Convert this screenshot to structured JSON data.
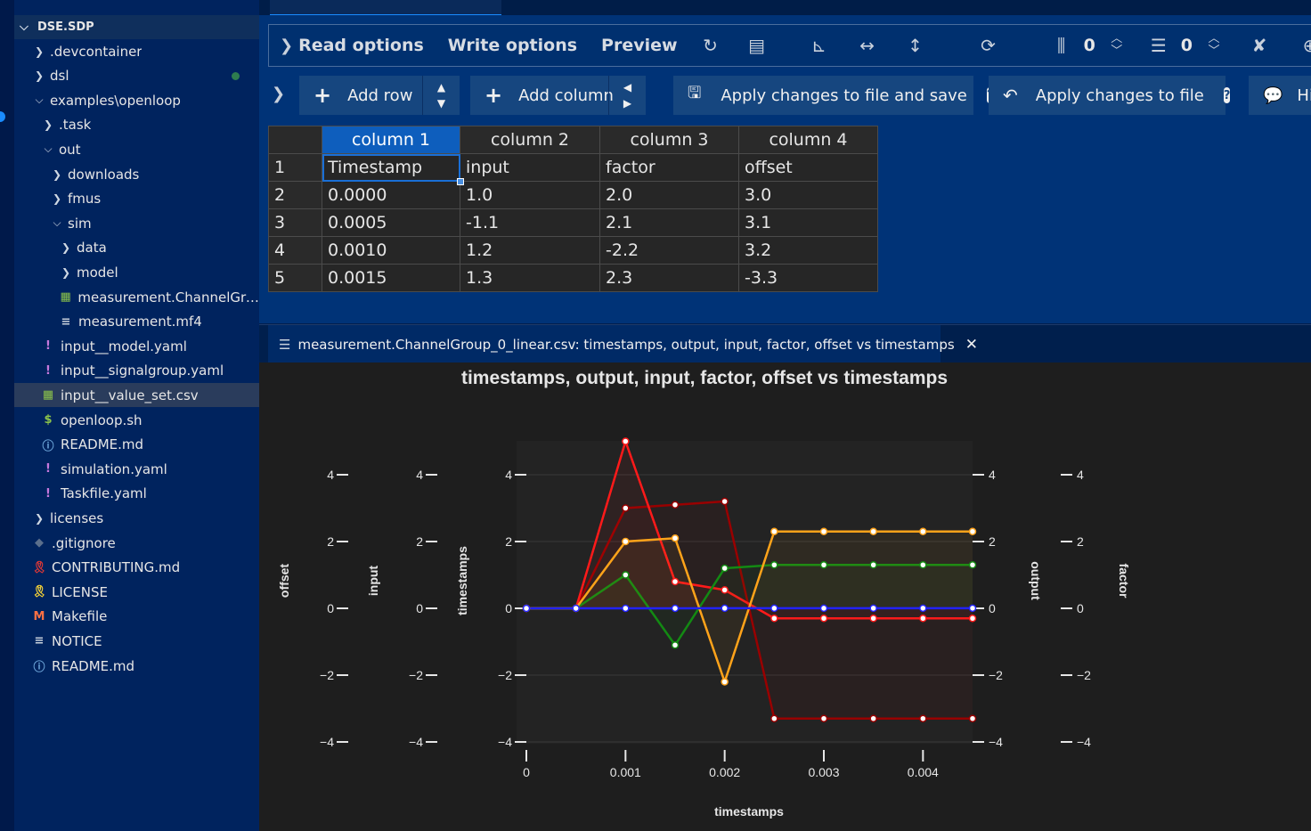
{
  "explorer": {
    "root": "DSE.SDP",
    "items": [
      {
        "label": ".devcontainer",
        "type": "folder",
        "open": false,
        "depth": 0
      },
      {
        "label": "dsl",
        "type": "folder",
        "open": false,
        "depth": 0
      },
      {
        "label": "examples\\openloop",
        "type": "folder",
        "open": true,
        "depth": 0
      },
      {
        "label": ".task",
        "type": "folder",
        "open": false,
        "depth": 1
      },
      {
        "label": "out",
        "type": "folder",
        "open": true,
        "depth": 1
      },
      {
        "label": "downloads",
        "type": "folder",
        "open": false,
        "depth": 2
      },
      {
        "label": "fmus",
        "type": "folder",
        "open": false,
        "depth": 2
      },
      {
        "label": "sim",
        "type": "folder",
        "open": true,
        "depth": 2
      },
      {
        "label": "data",
        "type": "folder",
        "open": false,
        "depth": 3
      },
      {
        "label": "model",
        "type": "folder",
        "open": false,
        "depth": 3
      },
      {
        "label": "measurement.ChannelGro...",
        "type": "csv",
        "depth": 3
      },
      {
        "label": "measurement.mf4",
        "type": "text",
        "depth": 3
      },
      {
        "label": "input__model.yaml",
        "type": "yaml",
        "depth": 1
      },
      {
        "label": "input__signalgroup.yaml",
        "type": "yaml",
        "depth": 1
      },
      {
        "label": "input__value_set.csv",
        "type": "csv",
        "depth": 1,
        "selected": true
      },
      {
        "label": "openloop.sh",
        "type": "shell",
        "depth": 1
      },
      {
        "label": "README.md",
        "type": "info",
        "depth": 1
      },
      {
        "label": "simulation.yaml",
        "type": "yaml",
        "depth": 1
      },
      {
        "label": "Taskfile.yaml",
        "type": "yaml",
        "depth": 1
      },
      {
        "label": "licenses",
        "type": "folder",
        "open": false,
        "depth": 0
      },
      {
        "label": ".gitignore",
        "type": "git",
        "depth": 0
      },
      {
        "label": "CONTRIBUTING.md",
        "type": "ribbon",
        "depth": 0
      },
      {
        "label": "LICENSE",
        "type": "ribbon-y",
        "depth": 0
      },
      {
        "label": "Makefile",
        "type": "make",
        "depth": 0
      },
      {
        "label": "NOTICE",
        "type": "text",
        "depth": 0
      },
      {
        "label": "README.md",
        "type": "info",
        "depth": 0
      }
    ]
  },
  "toolbar": {
    "read_options": "Read options",
    "write_options": "Write options",
    "preview": "Preview",
    "fixed_rows": "0",
    "fixed_cols": "0"
  },
  "buttons": {
    "add_row": "Add row",
    "add_column": "Add column",
    "apply_save": "Apply changes to file and save",
    "apply": "Apply changes to file",
    "hide": "Hi"
  },
  "grid": {
    "columns": [
      "column 1",
      "column 2",
      "column 3",
      "column 4"
    ],
    "rows": [
      {
        "n": "1",
        "cells": [
          "Timestamp",
          "input",
          "factor",
          "offset"
        ]
      },
      {
        "n": "2",
        "cells": [
          "0.0000",
          "1.0",
          "2.0",
          "3.0"
        ]
      },
      {
        "n": "3",
        "cells": [
          "0.0005",
          "-1.1",
          "2.1",
          "3.1"
        ]
      },
      {
        "n": "4",
        "cells": [
          "0.0010",
          "1.2",
          "-2.2",
          "3.2"
        ]
      },
      {
        "n": "5",
        "cells": [
          "0.0015",
          "1.3",
          "2.3",
          "-3.3"
        ]
      }
    ]
  },
  "plot_tab": {
    "title": "measurement.ChannelGroup_0_linear.csv: timestamps, output, input, factor, offset vs timestamps"
  },
  "chart_data": {
    "type": "line",
    "title": "timestamps, output, input, factor, offset vs timestamps",
    "xlabel": "timestamps",
    "xlim": [
      0,
      0.0045
    ],
    "xticks": [
      0,
      0.001,
      0.002,
      0.003,
      0.004
    ],
    "xtick_labels": [
      "0",
      "0.001",
      "0.002",
      "0.003",
      "0.004"
    ],
    "ylim": [
      -4,
      4
    ],
    "yticks": [
      4,
      2,
      0,
      -2,
      -4
    ],
    "ytick_labels": [
      "4",
      "2",
      "0",
      "−2",
      "−4"
    ],
    "left_axes": [
      "offset",
      "input",
      "timestamps"
    ],
    "right_axes": [
      "output",
      "factor"
    ],
    "x": [
      0,
      0.0005,
      0.001,
      0.0015,
      0.002,
      0.0025,
      0.003,
      0.0035,
      0.004,
      0.0045
    ],
    "series": [
      {
        "name": "timestamps",
        "color": "#2222ff",
        "values": [
          0,
          0.0005,
          0.001,
          0.0015,
          0.002,
          0.0025,
          0.003,
          0.0035,
          0.004,
          0.0045
        ]
      },
      {
        "name": "output",
        "color": "#ff1a1a",
        "values": [
          0,
          0,
          5.0,
          0.8,
          0.55,
          -0.3,
          -0.3,
          -0.3,
          -0.3,
          -0.3
        ]
      },
      {
        "name": "input",
        "color": "#138a13",
        "values": [
          0,
          0,
          1.0,
          -1.1,
          1.2,
          1.3,
          1.3,
          1.3,
          1.3,
          1.3
        ]
      },
      {
        "name": "factor",
        "color": "#ffa31a",
        "values": [
          0,
          0,
          2.0,
          2.1,
          -2.2,
          2.3,
          2.3,
          2.3,
          2.3,
          2.3
        ]
      },
      {
        "name": "offset",
        "color": "#990000",
        "values": [
          0,
          0,
          3.0,
          3.1,
          3.2,
          -3.3,
          -3.3,
          -3.3,
          -3.3,
          -3.3
        ]
      }
    ]
  }
}
